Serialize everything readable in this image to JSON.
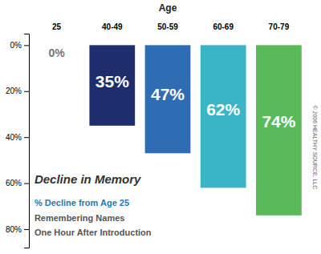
{
  "chart_data": {
    "type": "bar",
    "title": "Decline in Memory",
    "subtitle": "% Decline from Age 25",
    "xlabel": "Age",
    "annotations": [
      "Remembering Names",
      "One Hour After Introduction",
      "© 2006 HEALTHY SOURCE, LLC"
    ],
    "categories": [
      "25",
      "40-49",
      "50-59",
      "60-69",
      "70-79"
    ],
    "values": [
      0,
      35,
      47,
      62,
      74
    ],
    "value_labels": [
      "0%",
      "35%",
      "47%",
      "62%",
      "74%"
    ],
    "data_labels": true,
    "colors": [
      "#999999",
      "#1e2d6b",
      "#2e6db4",
      "#3ab5c8",
      "#5aba5a"
    ],
    "ylim": [
      88,
      -5
    ],
    "yticks": [
      {
        "value": 0,
        "label": "0%"
      },
      {
        "value": 20,
        "label": "20%"
      },
      {
        "value": 40,
        "label": "40%"
      },
      {
        "value": 60,
        "label": "60%"
      },
      {
        "value": 80,
        "label": "80%"
      }
    ],
    "grid": false
  }
}
